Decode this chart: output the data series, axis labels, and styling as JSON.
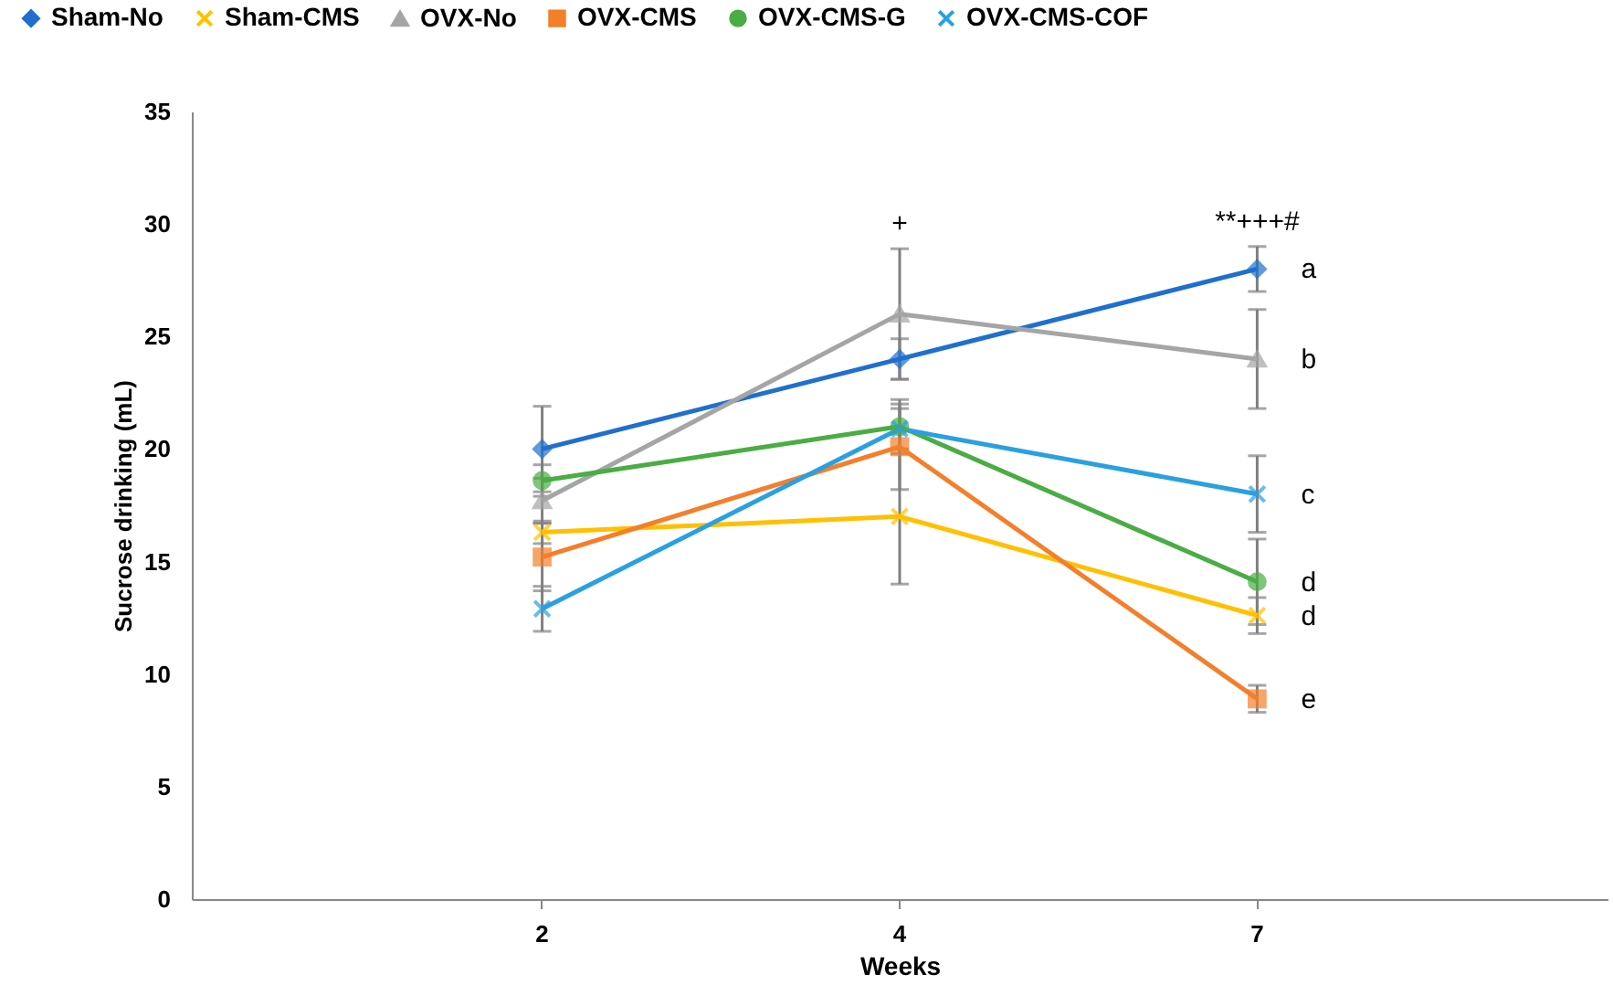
{
  "chart_data": {
    "type": "line",
    "xlabel": "Weeks",
    "ylabel": "Sucrose drinking (mL)",
    "categories": [
      "2",
      "4",
      "7"
    ],
    "ylim": [
      0,
      35
    ],
    "yticks": [
      0,
      5,
      10,
      15,
      20,
      25,
      30,
      35
    ],
    "grid": false,
    "legend": "top",
    "series": [
      {
        "name": "Sham-No",
        "color": "#1f6fd0",
        "marker": "diamond",
        "values": [
          20.0,
          24.0,
          28.0
        ],
        "errors": [
          1.9,
          0.9,
          1.0
        ]
      },
      {
        "name": "Sham-CMS",
        "color": "#ffc000",
        "marker": "cross",
        "values": [
          16.3,
          17.0,
          12.6
        ],
        "errors": [
          0.5,
          3.0,
          0.8
        ]
      },
      {
        "name": "OVX-No",
        "color": "#a5a5a5",
        "marker": "triangle",
        "values": [
          17.7,
          26.0,
          24.0
        ],
        "errors": [
          1.0,
          2.9,
          2.2
        ]
      },
      {
        "name": "OVX-CMS",
        "color": "#f47f2a",
        "marker": "square",
        "values": [
          15.2,
          20.1,
          8.9
        ],
        "errors": [
          1.5,
          1.9,
          0.6
        ]
      },
      {
        "name": "OVX-CMS-G",
        "color": "#4aad44",
        "marker": "circle",
        "values": [
          18.6,
          21.0,
          14.1
        ],
        "errors": [
          0.7,
          1.2,
          1.9
        ]
      },
      {
        "name": "OVX-CMS-COF",
        "color": "#2aa0e0",
        "marker": "cross",
        "values": [
          12.9,
          20.9,
          18.0
        ],
        "errors": [
          1.0,
          0.9,
          1.7
        ]
      }
    ],
    "annotations": [
      {
        "text": "+",
        "x": "4",
        "y": 28.9
      },
      {
        "text": "**+++#",
        "x": "7",
        "y": 29.0
      },
      {
        "text": "a",
        "x": "7",
        "y": 28.0
      },
      {
        "text": "b",
        "x": "7",
        "y": 24.0
      },
      {
        "text": "c",
        "x": "7",
        "y": 18.0
      },
      {
        "text": "d",
        "x": "7",
        "y": 14.1
      },
      {
        "text": "d",
        "x": "7",
        "y": 12.6
      },
      {
        "text": "e",
        "x": "7",
        "y": 8.9
      }
    ]
  }
}
